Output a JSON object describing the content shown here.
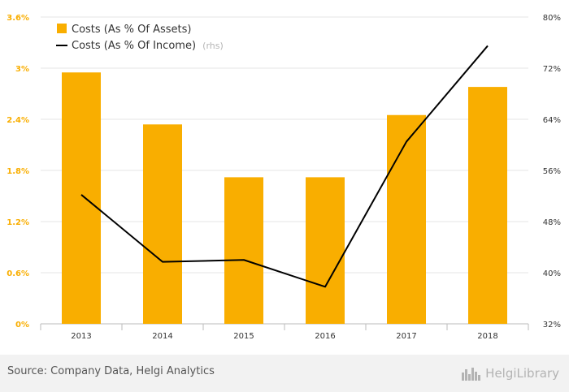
{
  "chart_data": {
    "type": "bar",
    "categories": [
      "2013",
      "2014",
      "2015",
      "2016",
      "2017",
      "2018"
    ],
    "series": [
      {
        "name": "Costs (As % Of Assets)",
        "type": "bar",
        "axis": "left",
        "values": [
          2.95,
          2.34,
          1.72,
          1.72,
          2.45,
          2.78
        ],
        "color": "#f9ae00"
      },
      {
        "name": "Costs (As % Of Income)",
        "type": "line",
        "axis": "right",
        "values": [
          52.2,
          41.7,
          42.0,
          37.8,
          60.5,
          75.5
        ],
        "color": "#000000"
      }
    ],
    "legend": {
      "bar_label": "Costs (As % Of Assets)",
      "line_label": "Costs (As % Of Income)",
      "line_suffix": "(rhs)",
      "position": "top-left"
    },
    "left_axis": {
      "ylim": [
        0,
        3.6
      ],
      "ticks": [
        "0%",
        "0.6%",
        "1.2%",
        "1.8%",
        "2.4%",
        "3%",
        "3.6%"
      ],
      "color": "#f9ae00"
    },
    "right_axis": {
      "ylim": [
        32,
        80
      ],
      "ticks": [
        "32%",
        "40%",
        "48%",
        "56%",
        "64%",
        "72%",
        "80%"
      ]
    },
    "grid": true
  },
  "footer": {
    "source": "Source: Company Data, Helgi Analytics",
    "brand": "HelgiLibrary",
    "brand_icon": "city-skyline-icon"
  }
}
